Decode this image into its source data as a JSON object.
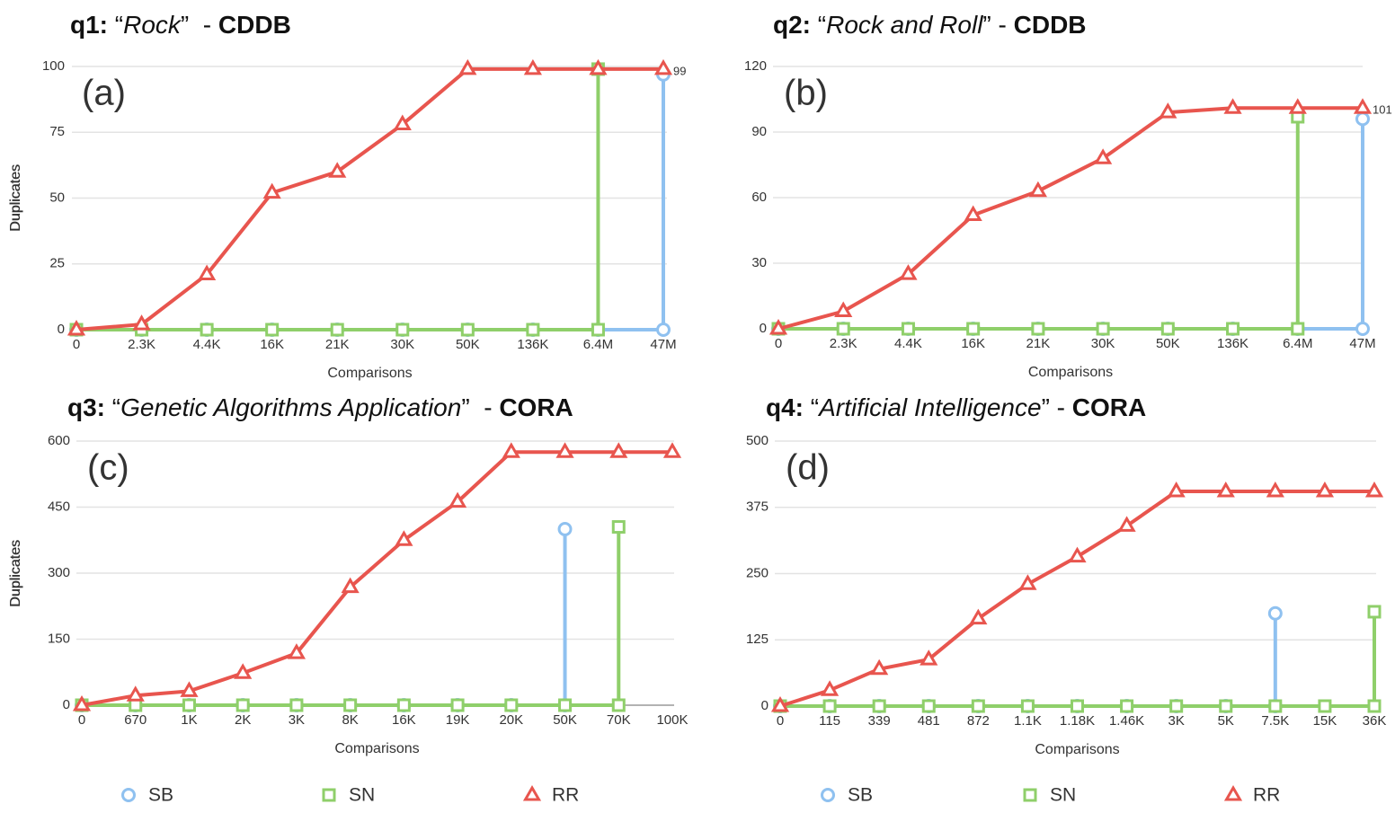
{
  "chart_data": [
    {
      "type": "line",
      "title": [
        "q1:",
        " “",
        "Rock",
        "”  - ",
        "CDDB"
      ],
      "panel_label": "(a)",
      "x_label": "Comparisons",
      "y_label": "Duplicates",
      "categories": [
        "0",
        "2.3K",
        "4.4K",
        "16K",
        "21K",
        "30K",
        "50K",
        "136K",
        "6.4M",
        "47M"
      ],
      "ylim": [
        0,
        100
      ],
      "yticks": [
        0,
        25,
        50,
        75,
        100
      ],
      "grid": true,
      "legend": false,
      "series": [
        {
          "name": "SB",
          "color": "#8fc1f0",
          "marker": "circle",
          "stem": true,
          "values": [
            0,
            0,
            0,
            0,
            0,
            0,
            0,
            0,
            0,
            97
          ]
        },
        {
          "name": "SN",
          "color": "#8fcf6a",
          "marker": "square",
          "stem": true,
          "values": [
            0,
            0,
            0,
            0,
            0,
            0,
            0,
            0,
            99,
            null
          ]
        },
        {
          "name": "RR",
          "color": "#e8554e",
          "marker": "triangle",
          "stem": false,
          "values": [
            0,
            2,
            21,
            52,
            60,
            78,
            99,
            99,
            99,
            99
          ],
          "value_labels": [
            null,
            null,
            null,
            null,
            null,
            null,
            null,
            null,
            null,
            "99"
          ]
        }
      ]
    },
    {
      "type": "line",
      "title": [
        "q2:",
        " “",
        "Rock and Roll",
        "” - ",
        "CDDB"
      ],
      "panel_label": "(b)",
      "x_label": "Comparisons",
      "y_label": "Duplicates",
      "categories": [
        "0",
        "2.3K",
        "4.4K",
        "16K",
        "21K",
        "30K",
        "50K",
        "136K",
        "6.4M",
        "47M"
      ],
      "ylim": [
        0,
        120
      ],
      "yticks": [
        0,
        30,
        60,
        90,
        120
      ],
      "grid": true,
      "legend": false,
      "series": [
        {
          "name": "SB",
          "color": "#8fc1f0",
          "marker": "circle",
          "stem": true,
          "values": [
            0,
            0,
            0,
            0,
            0,
            0,
            0,
            0,
            0,
            96
          ]
        },
        {
          "name": "SN",
          "color": "#8fcf6a",
          "marker": "square",
          "stem": true,
          "values": [
            0,
            0,
            0,
            0,
            0,
            0,
            0,
            0,
            97,
            null
          ]
        },
        {
          "name": "RR",
          "color": "#e8554e",
          "marker": "triangle",
          "stem": false,
          "values": [
            0,
            8,
            25,
            52,
            63,
            78,
            99,
            101,
            101,
            101
          ],
          "value_labels": [
            null,
            null,
            null,
            null,
            null,
            null,
            null,
            null,
            null,
            "101"
          ]
        }
      ]
    },
    {
      "type": "line",
      "title": [
        "q3:",
        " “",
        "Genetic Algorithms Application",
        "”  - ",
        "CORA"
      ],
      "panel_label": "(c)",
      "x_label": "Comparisons",
      "y_label": "Duplicates",
      "categories": [
        "0",
        "670",
        "1K",
        "2K",
        "3K",
        "8K",
        "16K",
        "19K",
        "20K",
        "50K",
        "70K",
        "100K"
      ],
      "ylim": [
        0,
        600
      ],
      "yticks": [
        0,
        150,
        300,
        450,
        600
      ],
      "grid": true,
      "legend": true,
      "series": [
        {
          "name": "SB",
          "color": "#8fc1f0",
          "marker": "circle",
          "stem": true,
          "values": [
            0,
            0,
            0,
            0,
            0,
            0,
            0,
            0,
            0,
            400,
            null,
            null
          ]
        },
        {
          "name": "SN",
          "color": "#8fcf6a",
          "marker": "square",
          "stem": true,
          "values": [
            0,
            0,
            0,
            0,
            0,
            0,
            0,
            0,
            0,
            0,
            405,
            null
          ]
        },
        {
          "name": "RR",
          "color": "#e8554e",
          "marker": "triangle",
          "stem": false,
          "values": [
            0,
            22,
            32,
            73,
            118,
            268,
            375,
            462,
            575,
            575,
            575,
            575
          ]
        }
      ]
    },
    {
      "type": "line",
      "title": [
        "q4:",
        " “",
        "Artificial Intelligence",
        "” - ",
        "CORA"
      ],
      "panel_label": "(d)",
      "x_label": "Comparisons",
      "y_label": "Duplicates",
      "categories": [
        "0",
        "115",
        "339",
        "481",
        "872",
        "1.1K",
        "1.18K",
        "1.46K",
        "3K",
        "5K",
        "7.5K",
        "15K",
        "36K"
      ],
      "ylim": [
        0,
        500
      ],
      "yticks": [
        0,
        125,
        250,
        375,
        500
      ],
      "grid": true,
      "legend": true,
      "series": [
        {
          "name": "SB",
          "color": "#8fc1f0",
          "marker": "circle",
          "stem": true,
          "values": [
            0,
            0,
            0,
            0,
            0,
            0,
            0,
            0,
            0,
            0,
            175,
            null,
            null
          ]
        },
        {
          "name": "SN",
          "color": "#8fcf6a",
          "marker": "square",
          "stem": true,
          "values": [
            0,
            0,
            0,
            0,
            0,
            0,
            0,
            0,
            0,
            0,
            0,
            0,
            178
          ]
        },
        {
          "name": "RR",
          "color": "#e8554e",
          "marker": "triangle",
          "stem": false,
          "values": [
            0,
            30,
            70,
            88,
            165,
            230,
            282,
            340,
            405,
            405,
            405,
            405,
            405
          ]
        }
      ]
    }
  ]
}
